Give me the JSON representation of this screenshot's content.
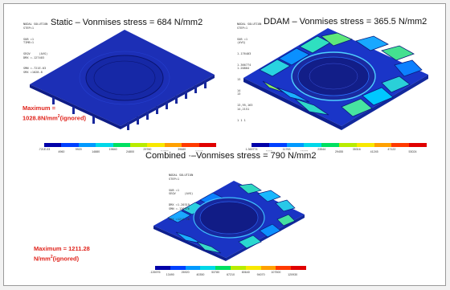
{
  "panels": {
    "static": {
      "title": "Static – Vonmises stress =  684 N/mm2",
      "info": [
        "NODAL SOLUTION",
        "STEP=1",
        "SUB =1",
        "TIME=1",
        "SEQV     (AVG)",
        "DMX =.127403",
        "SMN =.721E-03",
        "SMX =1028.8"
      ],
      "note_line1": "Maximum =",
      "note_value": "1028.8N/mm",
      "note_sup": "2",
      "note_tail": "(ignored)",
      "legend_ticks_top": [
        ".721E-03",
        "9920",
        "19840",
        "29760",
        "39680"
      ],
      "legend_ticks_bottom": [
        "4960",
        "14880",
        "24800",
        "34720",
        "44640"
      ]
    },
    "ddam": {
      "title": "DDAM – Vonmises stress = 365.5 N/mm2",
      "info": [
        "NODAL SOLUTION",
        "STEP=1",
        "SUB =1",
        "(AVG)",
        "",
        "1.176403",
        "1.366774",
        "1.20804",
        "",
        "13",
        "14",
        "13",
        "13,95,163",
        "14,2151",
        "1 1 1"
      ],
      "legend_ticks_top": [
        "1.369774",
        "11763",
        "23544",
        "35316",
        "47122"
      ],
      "legend_ticks_bottom": [
        "5892",
        "17673",
        "29455",
        "41245",
        "53024"
      ]
    },
    "combined": {
      "title": "Combined ·–Vonmises stress = 790 N/mm2",
      "info": [
        "NODAL SOLUTION",
        "STEP=1",
        "SUB =1",
        "SEQV     (AVG)",
        "DMX =1.20319",
        "SMN =.126976",
        "SMX =1211.28"
      ],
      "note_line1": "Maximum = 1211.28",
      "note_value": "N/mm",
      "note_sup": "2",
      "note_tail": "(ignored)",
      "legend_ticks_top": [
        ".126976",
        "26920",
        "53780",
        "80640",
        "107500"
      ],
      "legend_ticks_bottom": [
        "13490",
        "40350",
        "67210",
        "94070",
        "120930"
      ]
    }
  },
  "colors": {
    "background": "#ffffff",
    "plate_blue": "#1a2fb4",
    "note_red": "#e0241c",
    "contour_scale": [
      "#0000a8",
      "#0040ff",
      "#0099ff",
      "#00d8e8",
      "#00e060",
      "#b8ec00",
      "#f8e800",
      "#ffa000",
      "#ff3a00",
      "#e00000"
    ]
  }
}
